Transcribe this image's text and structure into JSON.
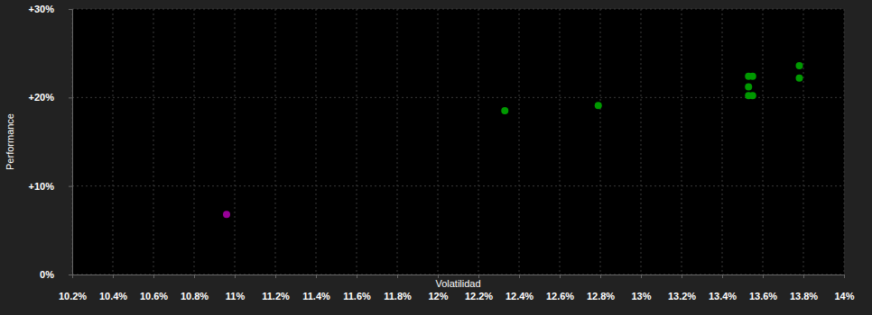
{
  "chart_data": {
    "type": "scatter",
    "x_label": "Volatilidad",
    "y_label": "Performance",
    "x": [
      10.96,
      12.33,
      12.79,
      13.53,
      13.55,
      13.53,
      13.53,
      13.55,
      13.78,
      13.78
    ],
    "values": [
      6.8,
      18.5,
      19.1,
      22.4,
      22.4,
      21.2,
      20.2,
      20.2,
      23.6,
      22.2
    ],
    "colors": [
      "#990099",
      "#009900",
      "#009900",
      "#009900",
      "#009900",
      "#009900",
      "#009900",
      "#009900",
      "#009900",
      "#009900"
    ],
    "marker": "circle",
    "xlim": [
      10.2,
      14
    ],
    "ylim": [
      0,
      30
    ],
    "xticks": [
      {
        "value": 10.2,
        "label": "10.2%"
      },
      {
        "value": 10.4,
        "label": "10.4%"
      },
      {
        "value": 10.6,
        "label": "10.6%"
      },
      {
        "value": 10.8,
        "label": "10.8%"
      },
      {
        "value": 11,
        "label": "11%"
      },
      {
        "value": 11.2,
        "label": "11.2%"
      },
      {
        "value": 11.4,
        "label": "11.4%"
      },
      {
        "value": 11.6,
        "label": "11.6%"
      },
      {
        "value": 11.8,
        "label": "11.8%"
      },
      {
        "value": 12,
        "label": "12%"
      },
      {
        "value": 12.2,
        "label": "12.2%"
      },
      {
        "value": 12.4,
        "label": "12.4%"
      },
      {
        "value": 12.6,
        "label": "12.6%"
      },
      {
        "value": 12.8,
        "label": "12.8%"
      },
      {
        "value": 13,
        "label": "13%"
      },
      {
        "value": 13.2,
        "label": "13.2%"
      },
      {
        "value": 13.4,
        "label": "13.4%"
      },
      {
        "value": 13.6,
        "label": "13.6%"
      },
      {
        "value": 13.8,
        "label": "13.8%"
      },
      {
        "value": 14,
        "label": "14%"
      }
    ],
    "yticks": [
      {
        "value": 0,
        "label": "0%"
      },
      {
        "value": 10,
        "label": "+10%"
      },
      {
        "value": 20,
        "label": "+20%"
      },
      {
        "value": 30,
        "label": "+30%"
      }
    ],
    "grid": true
  }
}
